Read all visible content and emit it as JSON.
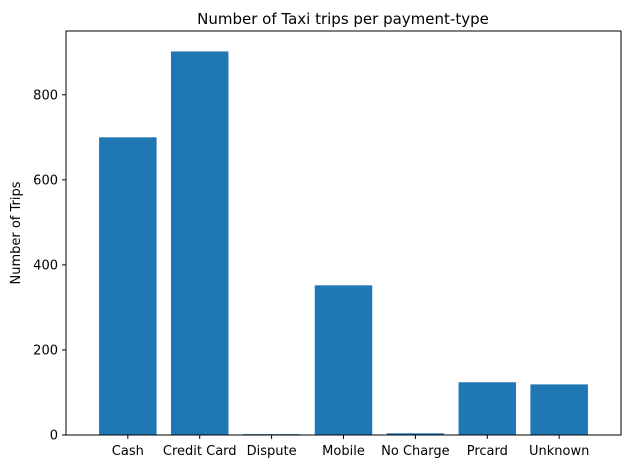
{
  "chart_data": {
    "type": "bar",
    "title": "Number of Taxi trips per payment-type",
    "xlabel": "",
    "ylabel": "Number of Trips",
    "categories": [
      "Cash",
      "Credit Card",
      "Dispute",
      "Mobile",
      "No Charge",
      "Prcard",
      "Unknown"
    ],
    "values": [
      700,
      902,
      2,
      352,
      4,
      124,
      119
    ],
    "ylim": [
      0,
      950
    ],
    "yticks": [
      0,
      200,
      400,
      600,
      800
    ],
    "bar_color": "#1f77b4",
    "grid": false,
    "legend": "none"
  }
}
